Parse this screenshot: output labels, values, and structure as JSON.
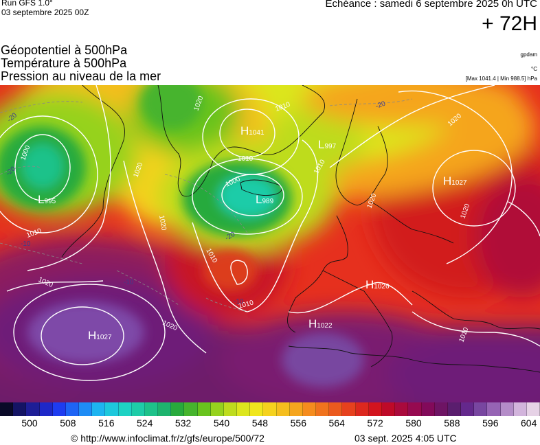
{
  "header": {
    "run_title": "Run GFS 1.0°",
    "run_date": "03 septembre 2025 00Z",
    "echeance": "Echéance : samedi 6 septembre 2025 0h UTC",
    "horizon": "+ 72H"
  },
  "parameters": [
    "Géopotentiel à 500hPa",
    "Température à 500hPa",
    "Pression au niveau de la mer"
  ],
  "units": {
    "geopotential": "gpdam",
    "temperature": "°C",
    "pressure": "[Max 1041.4 | Min 988.5] hPa"
  },
  "pressure_centers": [
    {
      "type": "H",
      "value": "1041"
    },
    {
      "type": "L",
      "value": "997"
    },
    {
      "type": "L",
      "value": "995"
    },
    {
      "type": "L",
      "value": "989"
    },
    {
      "type": "H",
      "value": "1027"
    },
    {
      "type": "H",
      "value": "1026"
    },
    {
      "type": "H",
      "value": "1022"
    },
    {
      "type": "H",
      "value": "1027"
    }
  ],
  "isobar_labels": [
    "1000",
    "1000",
    "1010",
    "1010",
    "1010",
    "1010",
    "1010",
    "1010",
    "1010",
    "1020",
    "1020",
    "1020",
    "1020",
    "1020",
    "1020",
    "1020",
    "1020"
  ],
  "temperature_labels": [
    "-20",
    "-20",
    "-20",
    "-20",
    "-10",
    "-10",
    "-10"
  ],
  "scale": {
    "colors": [
      "#0a0a28",
      "#141464",
      "#1e1e96",
      "#1e28c8",
      "#1e3cf0",
      "#1e64f5",
      "#1e8cf5",
      "#1eb4f0",
      "#1ec8dc",
      "#1ed2c3",
      "#1ecca8",
      "#1ec28a",
      "#1eb46e",
      "#28aa3c",
      "#46b42d",
      "#69c31e",
      "#96d21e",
      "#bedc1e",
      "#dce61e",
      "#f0e61e",
      "#f5d21e",
      "#f5be1e",
      "#f5a51e",
      "#f58c1e",
      "#f0731e",
      "#eb5a1e",
      "#e6411e",
      "#dc281e",
      "#d2141e",
      "#be0a28",
      "#aa0a3c",
      "#960a50",
      "#820a5a",
      "#6e1464",
      "#5a1e6e",
      "#64288c",
      "#7846a0",
      "#9664b4",
      "#b48cc8",
      "#d2b4dc",
      "#e6d2e6"
    ],
    "labels": [
      {
        "value": "500",
        "frac": 0.055
      },
      {
        "value": "508",
        "frac": 0.154
      },
      {
        "value": "516",
        "frac": 0.253
      },
      {
        "value": "524",
        "frac": 0.352
      },
      {
        "value": "532",
        "frac": 0.451
      },
      {
        "value": "540",
        "frac": 0.551
      },
      {
        "value": "548",
        "frac": 0.649
      },
      {
        "value": "556",
        "frac": 0.748
      },
      {
        "value": "564",
        "frac": 0.847
      },
      {
        "value": "572",
        "frac": 0.946
      },
      {
        "value": "580",
        "frac": 1.046
      },
      {
        "value": "588",
        "frac": 1.145
      },
      {
        "value": "596",
        "frac": 1.244
      },
      {
        "value": "604",
        "frac": 1.343
      }
    ]
  },
  "footer": {
    "copyright": "© http://www.infoclimat.fr/z/gfs/europe/500/72",
    "generated": "03 sept. 2025  4:05 UTC"
  }
}
